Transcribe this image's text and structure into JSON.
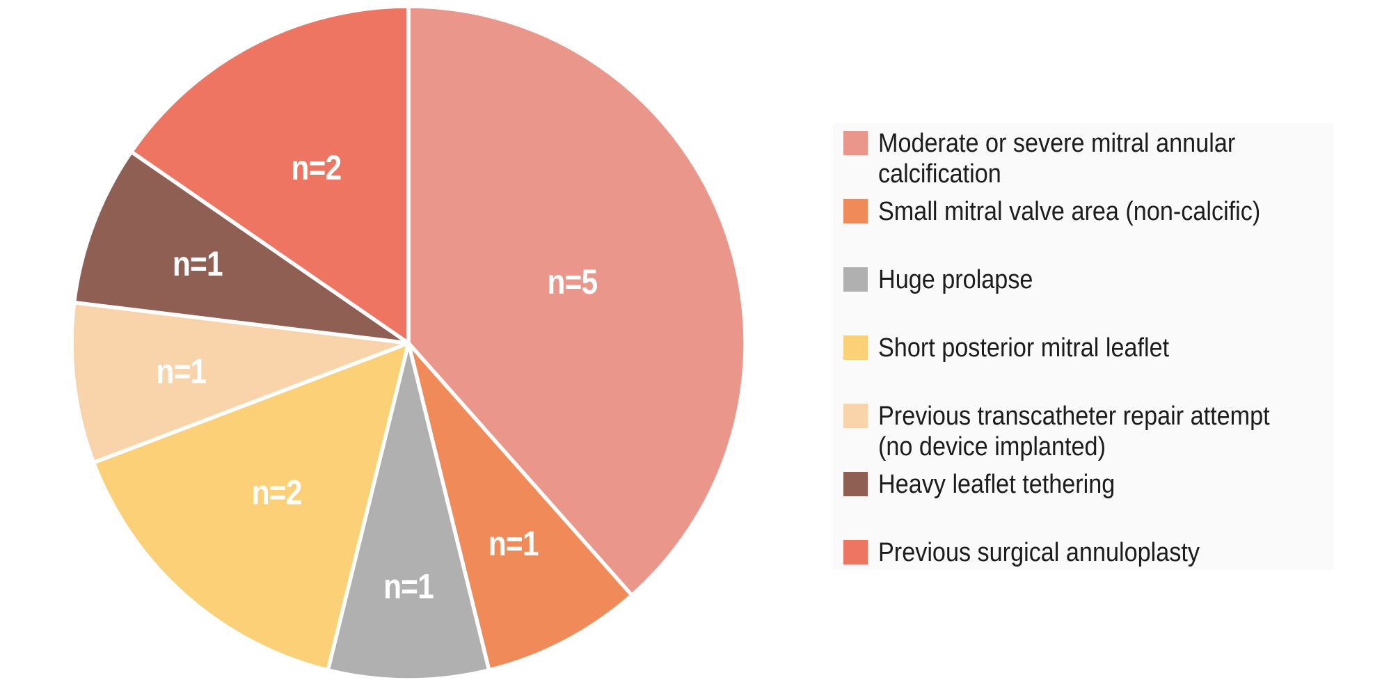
{
  "chart_data": {
    "type": "pie",
    "title": "",
    "total": 13,
    "direction": "clockwise",
    "start_angle_deg": 0,
    "legend_position": "right",
    "slice_label_color": "#FFFFFF",
    "slice_separator_color": "#FFFFFF",
    "slices": [
      {
        "label": "Moderate or severe mitral annular calcification",
        "legend_lines": [
          "Moderate or severe mitral annular",
          "calcification"
        ],
        "value": 5,
        "data_label": "n=5",
        "color": "#EA968A",
        "label_radius_fraction": 0.52
      },
      {
        "label": "Small mitral valve area (non-calcific)",
        "legend_lines": [
          "Small mitral valve area (non-calcific)"
        ],
        "value": 1,
        "data_label": "n=1",
        "color": "#F08A58",
        "label_radius_fraction": 0.67
      },
      {
        "label": "Huge prolapse",
        "legend_lines": [
          "Huge prolapse"
        ],
        "value": 1,
        "data_label": "n=1",
        "color": "#B1B0B0",
        "label_radius_fraction": 0.72
      },
      {
        "label": "Short posterior mitral leaflet",
        "legend_lines": [
          "Short posterior mitral leaflet"
        ],
        "value": 2,
        "data_label": "n=2",
        "color": "#FCD077",
        "label_radius_fraction": 0.59
      },
      {
        "label": "Previous transcatheter repair attempt (no device implanted)",
        "legend_lines": [
          "Previous transcatheter repair attempt",
          "(no device implanted)"
        ],
        "value": 1,
        "data_label": "n=1",
        "color": "#F9D4AA",
        "label_radius_fraction": 0.68
      },
      {
        "label": "Heavy leaflet tethering",
        "legend_lines": [
          "Heavy leaflet tethering"
        ],
        "value": 1,
        "data_label": "n=1",
        "color": "#8F5F54",
        "label_radius_fraction": 0.67
      },
      {
        "label": "Previous surgical annuloplasty",
        "legend_lines": [
          "Previous surgical annuloplasty"
        ],
        "value": 2,
        "data_label": "n=2",
        "color": "#EF7563",
        "label_radius_fraction": 0.59
      }
    ]
  },
  "legend": {
    "background": "#FAFAFA",
    "text_color": "#1C1C1C"
  }
}
